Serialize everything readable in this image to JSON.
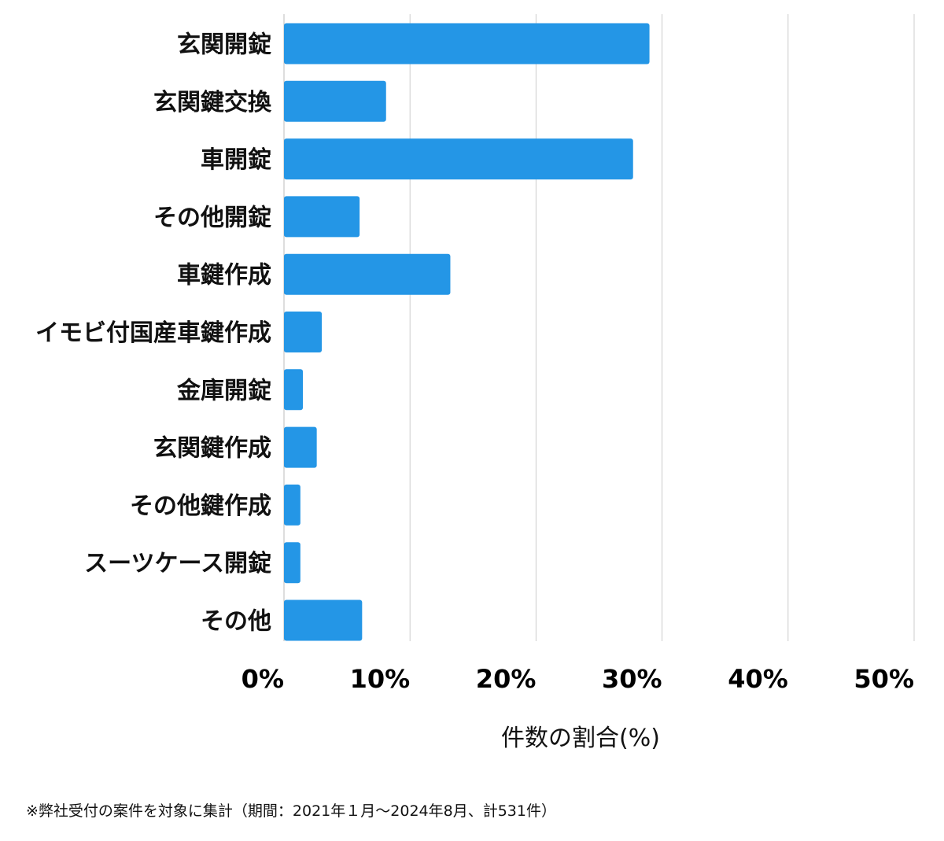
{
  "chart_data": {
    "type": "bar",
    "orientation": "horizontal",
    "categories": [
      "玄関開錠",
      "玄関鍵交換",
      "車開錠",
      "その他開錠",
      "車鍵作成",
      "イモビ付国産車鍵作成",
      "金庫開錠",
      "玄関鍵作成",
      "その他鍵作成",
      "スーツケース開錠",
      "その他"
    ],
    "values": [
      29.0,
      8.1,
      27.7,
      6.0,
      13.2,
      3.0,
      1.5,
      2.6,
      1.3,
      1.3,
      6.2
    ],
    "xlim": [
      0,
      50
    ],
    "xticks": [
      0,
      10,
      20,
      30,
      40,
      50
    ],
    "xtick_labels": [
      "0%",
      "10%",
      "20%",
      "30%",
      "40%",
      "50%"
    ],
    "xlabel": "件数の割合(%)",
    "ylabel": "",
    "title": "",
    "grid": "vertical",
    "bar_color": "#2496e6",
    "grid_color": "#cccccc"
  },
  "footnote": "※弊社受付の案件を対象に集計（期間：2021年１月～2024年8月、計531件）"
}
